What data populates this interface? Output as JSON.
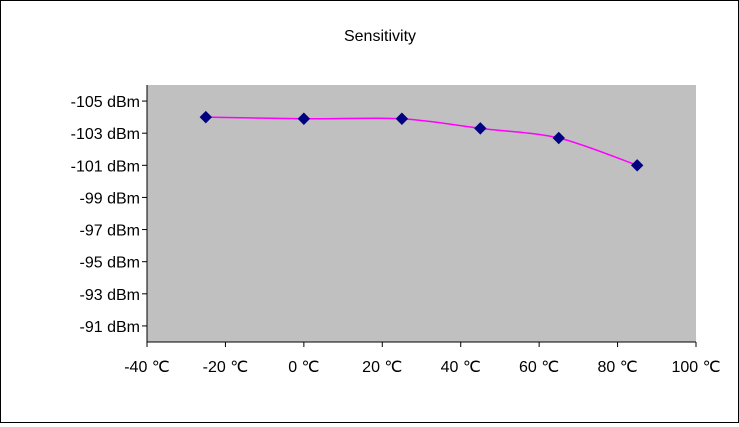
{
  "chart_data": {
    "type": "line",
    "title": "Sensitivity",
    "xlabel": "",
    "ylabel": "",
    "x_ticks": [
      "-40 ℃",
      "-20 ℃",
      "0 ℃",
      "20 ℃",
      "40 ℃",
      "60 ℃",
      "80 ℃",
      "100 ℃"
    ],
    "x_tick_values": [
      -40,
      -20,
      0,
      20,
      40,
      60,
      80,
      100
    ],
    "y_ticks": [
      "-105 dBm",
      "-103 dBm",
      "-101 dBm",
      "-99 dBm",
      "-97 dBm",
      "-95 dBm",
      "-93 dBm",
      "-91 dBm"
    ],
    "y_tick_values": [
      -105,
      -103,
      -101,
      -99,
      -97,
      -95,
      -93,
      -91
    ],
    "xlim": [
      -40,
      100
    ],
    "ylim": [
      -106,
      -90
    ],
    "y_inverted": true,
    "grid": false,
    "legend": "none",
    "series": [
      {
        "x": [
          -25,
          0,
          25,
          45,
          65,
          85
        ],
        "y": [
          -104,
          -103.9,
          -103.9,
          -103.3,
          -102.7,
          -101
        ],
        "line_color": "#ff00ff",
        "marker_color": "#000080",
        "marker": "diamond"
      }
    ],
    "plot_background": "#c0c0c0"
  }
}
